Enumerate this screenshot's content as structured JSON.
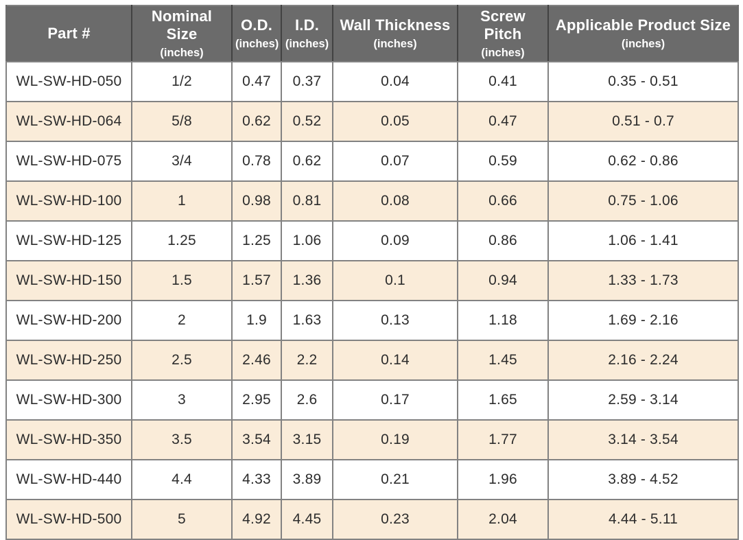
{
  "colors": {
    "header_bg": "#6b6b6b",
    "header_text": "#ffffff",
    "header_separator": "#424242",
    "body_border": "#828282",
    "zebra_row_bg": "#faecd9",
    "plain_row_bg": "#ffffff",
    "body_text": "#2d2d2d"
  },
  "chart_data": {
    "type": "table",
    "title": "",
    "columns": [
      {
        "label": "Part #",
        "sub": ""
      },
      {
        "label": "Nominal Size",
        "sub": "(inches)"
      },
      {
        "label": "O.D.",
        "sub": "(inches)"
      },
      {
        "label": "I.D.",
        "sub": "(inches)"
      },
      {
        "label": "Wall Thickness",
        "sub": "(inches)"
      },
      {
        "label": "Screw Pitch",
        "sub": "(inches)"
      },
      {
        "label": "Applicable Product Size",
        "sub": "(inches)"
      }
    ],
    "rows": [
      [
        "WL-SW-HD-050",
        "1/2",
        "0.47",
        "0.37",
        "0.04",
        "0.41",
        "0.35 - 0.51"
      ],
      [
        "WL-SW-HD-064",
        "5/8",
        "0.62",
        "0.52",
        "0.05",
        "0.47",
        "0.51 - 0.7"
      ],
      [
        "WL-SW-HD-075",
        "3/4",
        "0.78",
        "0.62",
        "0.07",
        "0.59",
        "0.62 - 0.86"
      ],
      [
        "WL-SW-HD-100",
        "1",
        "0.98",
        "0.81",
        "0.08",
        "0.66",
        "0.75 - 1.06"
      ],
      [
        "WL-SW-HD-125",
        "1.25",
        "1.25",
        "1.06",
        "0.09",
        "0.86",
        "1.06 - 1.41"
      ],
      [
        "WL-SW-HD-150",
        "1.5",
        "1.57",
        "1.36",
        "0.1",
        "0.94",
        "1.33 - 1.73"
      ],
      [
        "WL-SW-HD-200",
        "2",
        "1.9",
        "1.63",
        "0.13",
        "1.18",
        "1.69 - 2.16"
      ],
      [
        "WL-SW-HD-250",
        "2.5",
        "2.46",
        "2.2",
        "0.14",
        "1.45",
        "2.16 - 2.24"
      ],
      [
        "WL-SW-HD-300",
        "3",
        "2.95",
        "2.6",
        "0.17",
        "1.65",
        "2.59 - 3.14"
      ],
      [
        "WL-SW-HD-350",
        "3.5",
        "3.54",
        "3.15",
        "0.19",
        "1.77",
        "3.14 - 3.54"
      ],
      [
        "WL-SW-HD-440",
        "4.4",
        "4.33",
        "3.89",
        "0.21",
        "1.96",
        "3.89 - 4.52"
      ],
      [
        "WL-SW-HD-500",
        "5",
        "4.92",
        "4.45",
        "0.23",
        "2.04",
        "4.44 - 5.11"
      ]
    ]
  }
}
